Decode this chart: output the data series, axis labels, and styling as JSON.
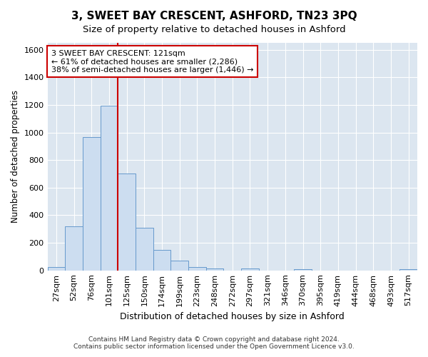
{
  "title": "3, SWEET BAY CRESCENT, ASHFORD, TN23 3PQ",
  "subtitle": "Size of property relative to detached houses in Ashford",
  "xlabel": "Distribution of detached houses by size in Ashford",
  "ylabel": "Number of detached properties",
  "footer_line1": "Contains HM Land Registry data © Crown copyright and database right 2024.",
  "footer_line2": "Contains public sector information licensed under the Open Government Licence v3.0.",
  "bar_labels": [
    "27sqm",
    "52sqm",
    "76sqm",
    "101sqm",
    "125sqm",
    "150sqm",
    "174sqm",
    "199sqm",
    "223sqm",
    "248sqm",
    "272sqm",
    "297sqm",
    "321sqm",
    "346sqm",
    "370sqm",
    "395sqm",
    "419sqm",
    "444sqm",
    "468sqm",
    "493sqm",
    "517sqm"
  ],
  "bar_values": [
    25,
    320,
    965,
    1195,
    700,
    310,
    150,
    70,
    25,
    15,
    0,
    15,
    0,
    0,
    10,
    0,
    0,
    0,
    0,
    0,
    10
  ],
  "bar_color": "#ccddf0",
  "bar_edge_color": "#6699cc",
  "vline_index": 4,
  "vline_color": "#cc0000",
  "annotation_text": "3 SWEET BAY CRESCENT: 121sqm\n← 61% of detached houses are smaller (2,286)\n38% of semi-detached houses are larger (1,446) →",
  "annotation_box_edgecolor": "#cc0000",
  "annotation_text_color": "#000000",
  "ylim": [
    0,
    1650
  ],
  "yticks": [
    0,
    200,
    400,
    600,
    800,
    1000,
    1200,
    1400,
    1600
  ],
  "background_color": "#ffffff",
  "plot_background_color": "#dce6f0",
  "grid_color": "#ffffff",
  "title_fontsize": 11,
  "subtitle_fontsize": 9.5,
  "xlabel_fontsize": 9,
  "ylabel_fontsize": 8.5,
  "tick_fontsize": 8
}
